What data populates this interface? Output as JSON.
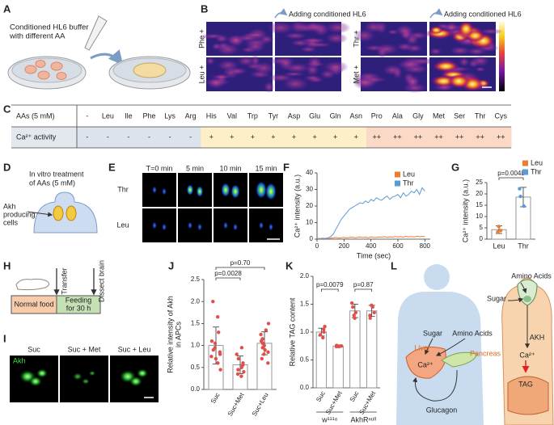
{
  "panel_labels": [
    "A",
    "B",
    "C",
    "D",
    "E",
    "F",
    "G",
    "H",
    "I",
    "J",
    "K",
    "L"
  ],
  "panel_a": {
    "caption_lines": [
      "Conditioned HL6 buffer",
      "with different AA"
    ]
  },
  "panel_b": {
    "row_labels": [
      "Phe +",
      "Leu +",
      "Thr +",
      "Met +"
    ],
    "arrow_labels": [
      "Adding conditioned HL6",
      "Adding conditioned HL6"
    ]
  },
  "panel_c": {
    "header": [
      "AAs (5 mM)",
      "-",
      "Leu",
      "Ile",
      "Phe",
      "Lys",
      "Arg",
      "His",
      "Val",
      "Trp",
      "Tyr",
      "Asp",
      "Glu",
      "Gln",
      "Asn",
      "Pro",
      "Ala",
      "Gly",
      "Met",
      "Ser",
      "Thr",
      "Cys"
    ],
    "row": [
      "Ca²⁺ activity",
      "-",
      "-",
      "-",
      "-",
      "-",
      "-",
      "+",
      "+",
      "+",
      "+",
      "+",
      "+",
      "+",
      "+",
      "++",
      "++",
      "++",
      "++",
      "++",
      "++",
      "++"
    ],
    "colors": {
      "-": "#dde3ea",
      "+": "#fdf0c9",
      "++": "#fbd9c6"
    }
  },
  "panel_d": {
    "caption_lines": [
      "In vitro treatment",
      "of AAs (5 mM)"
    ],
    "cell_label_lines": [
      "Akh",
      "producing",
      "cells"
    ]
  },
  "panel_e": {
    "time_labels": [
      "T=0 min",
      "5 min",
      "10 min",
      "15 min"
    ],
    "row_labels": [
      "Thr",
      "Leu"
    ]
  },
  "panel_h": {
    "box_labels": [
      [
        "Normal food"
      ],
      [
        "Feeding",
        "for 30 h"
      ]
    ],
    "arrow_labels": [
      "Transfer",
      "Dissect brain"
    ]
  },
  "panel_i": {
    "stain": "Akh",
    "conditions": [
      "Suc",
      "Suc + Met",
      "Suc + Leu"
    ]
  },
  "panel_l": {
    "human": {
      "sugar": "Sugar",
      "amino_acids": "Amino Acids",
      "liver": "Liver",
      "calcium": "Ca²⁺",
      "pancreas": "Pancreas",
      "glucagon": "Glucagon"
    },
    "fly": {
      "amino_acids": "Amino Acids",
      "sugar": "Sugar",
      "akh": "AKH",
      "calcium": "Ca²⁺",
      "tag": "TAG"
    }
  },
  "chart_data": [
    {
      "type": "line",
      "x_label": "Time (sec)",
      "y_label": [
        "Ca²⁺ intensity (a.u.)"
      ],
      "x": [
        0,
        20,
        40,
        60,
        80,
        100,
        120,
        140,
        160,
        180,
        200,
        220,
        240,
        260,
        280,
        300,
        320,
        340,
        360,
        380,
        400,
        420,
        440,
        460,
        480,
        500,
        520,
        540,
        560,
        580,
        600,
        620,
        640,
        660,
        680,
        700,
        720,
        740,
        760,
        780,
        800
      ],
      "series": [
        {
          "name": "Leu",
          "color": "#ed7d31",
          "values": [
            0.2,
            0.4,
            0.3,
            0.5,
            0.3,
            0.6,
            0.8,
            1.0,
            0.7,
            0.9,
            1.1,
            0.8,
            1.0,
            1.2,
            0.9,
            1.1,
            1.3,
            1.0,
            1.2,
            0.9,
            1.4,
            1.1,
            1.0,
            1.3,
            1.2,
            1.5,
            1.1,
            1.4,
            1.2,
            1.6,
            1.3,
            1.5,
            1.2,
            1.7,
            1.4,
            1.6,
            1.3,
            1.8,
            1.5,
            1.7,
            1.6
          ]
        },
        {
          "name": "Thr",
          "color": "#5b9bd5",
          "values": [
            0.5,
            0.3,
            0.6,
            0.4,
            0.8,
            1.5,
            3,
            6,
            9,
            12,
            14,
            16,
            18,
            19,
            20,
            21,
            22,
            21.5,
            23,
            22,
            24,
            23,
            25,
            24,
            23.5,
            25,
            26,
            24,
            25.5,
            26,
            27,
            25,
            28,
            26,
            27,
            29,
            28,
            30,
            27,
            31,
            29
          ]
        }
      ],
      "xlim": [
        0,
        840
      ],
      "xticks": [
        0,
        200,
        400,
        600,
        800
      ],
      "ylim": [
        0,
        40
      ],
      "yticks": [
        0,
        10,
        20,
        30,
        40
      ]
    },
    {
      "type": "bar",
      "y_label": [
        "Ca²⁺ intensity (a.u.)"
      ],
      "categories": [
        "Leu",
        "Thr"
      ],
      "values": [
        4.2,
        18.6
      ],
      "errors": [
        1.7,
        4.3
      ],
      "points": [
        [
          5.6,
          3.8,
          3.2
        ],
        [
          22.3,
          18.9,
          14.6
        ]
      ],
      "colors": [
        "#ed7d31",
        "#5b9bd5"
      ],
      "bar_edge_color": "#8c8c8c",
      "legend": true,
      "annotations": [
        "p=0.0048"
      ],
      "ylim": [
        0,
        25
      ],
      "yticks": [
        0,
        5,
        10,
        15,
        20,
        25
      ]
    },
    {
      "type": "bar",
      "y_label": [
        "Relative intensity of Akh",
        "in APCs"
      ],
      "categories": [
        "Suc",
        "Suc+Met",
        "Suc+Leu"
      ],
      "values": [
        1.0,
        0.56,
        1.05
      ],
      "errors": [
        0.42,
        0.2,
        0.26
      ],
      "points": [
        [
          2.0,
          1.65,
          1.3,
          1.1,
          1.05,
          0.95,
          0.9,
          0.85,
          0.8,
          0.75,
          0.7,
          0.6,
          0.45
        ],
        [
          0.95,
          0.8,
          0.7,
          0.6,
          0.55,
          0.5,
          0.45,
          0.4,
          0.35,
          0.3
        ],
        [
          1.5,
          1.35,
          1.25,
          1.15,
          1.1,
          1.05,
          1.0,
          0.95,
          0.9,
          0.85,
          0.8,
          0.7,
          0.6
        ]
      ],
      "point_color": "#e0504b",
      "bar_edge_color": "#8c8c8c",
      "annotations": [
        "p=0.0028",
        "p=0.70"
      ],
      "ylim": [
        0,
        2.5
      ],
      "yticks": [
        {
          "value": 0,
          "label": "0.0"
        },
        0.5,
        {
          "value": 1,
          "label": "1.0"
        },
        1.5,
        {
          "value": 2,
          "label": "2.0"
        },
        2.5
      ]
    },
    {
      "type": "bar",
      "y_label": [
        "Relative TAG content"
      ],
      "categories": [
        "Suc",
        "Suc+Met",
        "Suc",
        "Suc+Met"
      ],
      "values": [
        1.0,
        0.75,
        1.38,
        1.38
      ],
      "errors": [
        0.07,
        0.02,
        0.12,
        0.1
      ],
      "points": [
        [
          1.1,
          1.05,
          1.0,
          0.95,
          0.9
        ],
        [
          0.76,
          0.75,
          0.75,
          0.74,
          0.74
        ],
        [
          1.52,
          1.45,
          1.35,
          1.3,
          1.25
        ],
        [
          1.48,
          1.45,
          1.35,
          1.3,
          1.25
        ]
      ],
      "point_color": "#e0504b",
      "bar_edge_color": "#8c8c8c",
      "groups": [
        "w¹¹¹⁸",
        "AkhRⁿᵘˡˡ"
      ],
      "annotations": [
        "p=0.0079",
        "p=0.87"
      ],
      "ylim": [
        0,
        2.0
      ],
      "yticks": [
        {
          "value": 0,
          "label": "0.0"
        },
        0.5,
        {
          "value": 1,
          "label": "1.0"
        },
        1.5,
        {
          "value": 2,
          "label": "2.0"
        }
      ]
    }
  ]
}
